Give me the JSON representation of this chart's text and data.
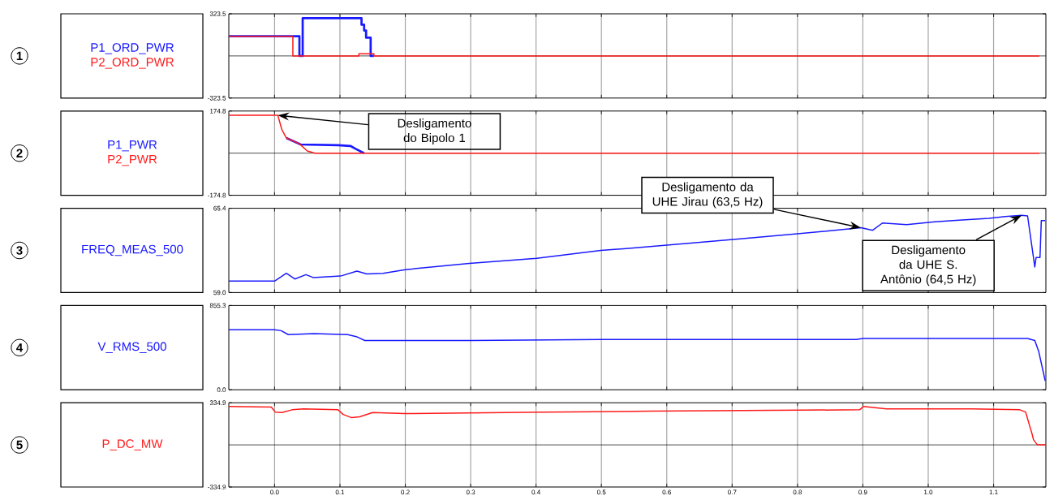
{
  "chart_data": [
    {
      "type": "step",
      "xlim": [
        -0.07,
        1.18
      ],
      "xticks": [
        0,
        0.1,
        0.2,
        0.3,
        0.4,
        0.5,
        0.6,
        0.7,
        0.8,
        0.9,
        1.0,
        1.1
      ],
      "ylim": [
        -323.5,
        323.5
      ],
      "yticks": [
        -323.5,
        323.5
      ],
      "grid": "x",
      "legend": "left",
      "tick_labels": "y",
      "ref_lines": [
        {
          "axis": "y",
          "value": 0,
          "color": "#000000"
        }
      ],
      "annotations": [
        "1"
      ],
      "series": [
        {
          "name": "P1_ORD_PWR",
          "color": "#1a1aff",
          "x": [
            -0.07,
            0.038,
            0.043,
            0.133,
            0.137,
            0.14,
            0.147,
            0.152
          ],
          "values": [
            151,
            0,
            290,
            240,
            195,
            140,
            0,
            0
          ]
        },
        {
          "name": "P2_ORD_PWR",
          "color": "#ff1a1a",
          "x": [
            -0.07,
            0.028,
            0.129,
            0.152,
            1.17
          ],
          "values": [
            151,
            0,
            17,
            0,
            0
          ]
        }
      ]
    },
    {
      "type": "line",
      "xlim": [
        -0.07,
        1.18
      ],
      "xticks": [
        0,
        0.1,
        0.2,
        0.3,
        0.4,
        0.5,
        0.6,
        0.7,
        0.8,
        0.9,
        1.0,
        1.1
      ],
      "ylim": [
        -174.8,
        174.8
      ],
      "yticks": [
        -174.8,
        174.8
      ],
      "grid": "x",
      "legend": "left",
      "tick_labels": "y",
      "ref_lines": [
        {
          "axis": "y",
          "value": 0,
          "color": "#000000"
        }
      ],
      "annotations": [
        "2",
        "Desligamento do Bipolo 1"
      ],
      "series": [
        {
          "name": "P1_PWR",
          "color": "#1a1aff",
          "x": [
            0.018,
            0.04,
            0.097,
            0.116,
            0.124,
            0.137
          ],
          "values": [
            63,
            36,
            33,
            30,
            18,
            0
          ]
        },
        {
          "name": "P2_PWR",
          "color": "#ff1a1a",
          "x": [
            -0.07,
            0.005,
            0.011,
            0.018,
            0.038,
            0.05,
            0.062,
            1.17
          ],
          "values": [
            157,
            157,
            99,
            63,
            39,
            9,
            0,
            0
          ]
        }
      ]
    },
    {
      "type": "line",
      "xlim": [
        -0.07,
        1.18
      ],
      "xticks": [
        0,
        0.1,
        0.2,
        0.3,
        0.4,
        0.5,
        0.6,
        0.7,
        0.8,
        0.9,
        1.0,
        1.1
      ],
      "ylim": [
        59.0,
        65.4
      ],
      "yticks": [
        {
          "value": 59,
          "label": "59.0"
        },
        65.4
      ],
      "grid": "x",
      "legend": "left",
      "tick_labels": "y",
      "annotations": [
        "3",
        {
          "text": "Desligamento da UHE Jirau (63,5 Hz)",
          "x": 0.897,
          "y": 63.92
        },
        {
          "text": "Desligamento da UHE S. Antônio (64,5 Hz)",
          "x": 1.143,
          "y": 64.87
        }
      ],
      "series": [
        {
          "name": "FREQ_MEAS_500",
          "color": "#1a1aff",
          "x": [
            -0.07,
            0.0,
            0.018,
            0.031,
            0.048,
            0.059,
            0.101,
            0.126,
            0.141,
            0.166,
            0.2,
            0.298,
            0.401,
            0.499,
            0.549,
            0.633,
            0.716,
            0.8,
            0.897,
            0.915,
            0.93,
            0.967,
            1.01,
            1.052,
            1.093,
            1.118,
            1.143,
            1.152,
            1.161,
            1.163,
            1.165,
            1.171,
            1.173,
            1.179
          ],
          "values": [
            59.87,
            59.87,
            60.46,
            60.03,
            60.36,
            60.14,
            60.25,
            60.63,
            60.41,
            60.46,
            60.74,
            61.22,
            61.6,
            62.2,
            62.38,
            62.74,
            63.1,
            63.46,
            63.92,
            63.73,
            64.28,
            64.15,
            64.37,
            64.51,
            64.64,
            64.77,
            64.87,
            64.82,
            61.66,
            60.94,
            61.66,
            61.66,
            64.46,
            64.46
          ]
        }
      ]
    },
    {
      "type": "line",
      "xlim": [
        -0.07,
        1.18
      ],
      "xticks": [
        0,
        0.1,
        0.2,
        0.3,
        0.4,
        0.5,
        0.6,
        0.7,
        0.8,
        0.9,
        1.0,
        1.1
      ],
      "ylim": [
        0.0,
        855.3
      ],
      "yticks": [
        {
          "value": 0,
          "label": "0.0"
        },
        855.3
      ],
      "grid": "x",
      "legend": "left",
      "tick_labels": "y",
      "annotations": [
        "4"
      ],
      "series": [
        {
          "name": "V_RMS_500",
          "color": "#1a1aff",
          "x": [
            -0.07,
            0.0,
            0.01,
            0.021,
            0.06,
            0.112,
            0.125,
            0.138,
            0.3,
            0.5,
            0.7,
            0.89,
            0.9,
            0.93,
            1.1,
            1.152,
            1.163,
            1.169,
            1.179
          ],
          "values": [
            610,
            610,
            600,
            560,
            570,
            560,
            540,
            500,
            500,
            510,
            510,
            510,
            520,
            520,
            520,
            520,
            500,
            390,
            90
          ]
        }
      ]
    },
    {
      "type": "line",
      "xlim": [
        -0.07,
        1.18
      ],
      "xticks": [
        {
          "value": 0,
          "label": "0.0"
        },
        {
          "value": 0.1,
          "label": "0.1"
        },
        {
          "value": 0.2,
          "label": "0.2"
        },
        {
          "value": 0.3,
          "label": "0.3"
        },
        {
          "value": 0.4,
          "label": "0.4"
        },
        {
          "value": 0.5,
          "label": "0.5"
        },
        {
          "value": 0.6,
          "label": "0.6"
        },
        {
          "value": 0.7,
          "label": "0.7"
        },
        {
          "value": 0.8,
          "label": "0.8"
        },
        {
          "value": 0.9,
          "label": "0.9"
        },
        {
          "value": 1.0,
          "label": "1.0"
        },
        {
          "value": 1.1,
          "label": "1.1"
        }
      ],
      "ylim": [
        -334.9,
        334.9
      ],
      "yticks": [
        -334.9,
        334.9
      ],
      "grid": "x",
      "legend": "left",
      "ref_lines": [
        {
          "axis": "y",
          "value": 0,
          "color": "#000000"
        }
      ],
      "annotations": [
        "5"
      ],
      "series": [
        {
          "name": "P_DC_MW",
          "color": "#ff1a1a",
          "x": [
            -0.07,
            -0.005,
            0.001,
            0.011,
            0.027,
            0.044,
            0.097,
            0.105,
            0.118,
            0.13,
            0.15,
            0.199,
            0.412,
            0.576,
            0.805,
            0.895,
            0.901,
            0.936,
            1.067,
            1.14,
            1.149,
            1.159,
            1.161,
            1.167,
            1.18
          ],
          "values": [
            305,
            301,
            261,
            257,
            279,
            286,
            279,
            242,
            216,
            223,
            257,
            249,
            261,
            268,
            276,
            279,
            305,
            286,
            286,
            279,
            261,
            84,
            42,
            0,
            0
          ]
        }
      ]
    }
  ]
}
